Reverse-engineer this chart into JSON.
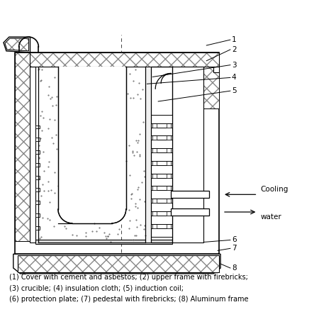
{
  "bg_color": "#ffffff",
  "line_color": "#000000",
  "caption_lines": [
    "(1) Cover with cement and asbestos; (2) upper frame with firebricks;",
    "(3) crucible; (4) insulation cloth; (5) induction coil;",
    "(6) protection plate; (7) pedestal with firebricks; (8) Aluminum frame"
  ]
}
